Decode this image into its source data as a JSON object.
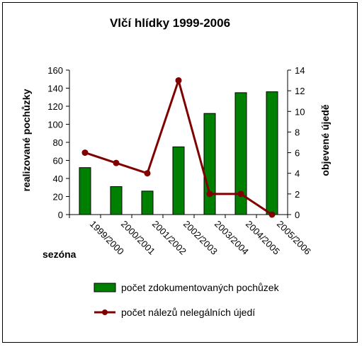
{
  "chart_data": {
    "type": "bar+line",
    "title": "Vlčí hlídky 1999-2006",
    "xlabel": "sezóna",
    "ylabel_left": "realizované pochůzky",
    "ylabel_right": "objevené újedě",
    "categories": [
      "1999/2000",
      "2000/2001",
      "2001/2002",
      "2002/2003",
      "2003/2004",
      "2004/2005",
      "2005/2006"
    ],
    "ylim_left": [
      0,
      160
    ],
    "ylim_right": [
      0,
      14
    ],
    "yticks_left": [
      "0",
      "20",
      "40",
      "60",
      "80",
      "100",
      "120",
      "140",
      "160"
    ],
    "yticks_right": [
      "0",
      "2",
      "4",
      "6",
      "8",
      "10",
      "12",
      "14"
    ],
    "series": [
      {
        "name": "počet zdokumentovaných pochůzek",
        "type": "bar",
        "axis": "left",
        "color": "#008000",
        "values": [
          52,
          31,
          26,
          75,
          112,
          135,
          136
        ]
      },
      {
        "name": "počet nálezů nelegálních újedí",
        "type": "line",
        "axis": "right",
        "color": "#800000",
        "values": [
          6,
          5,
          4,
          13,
          2,
          2,
          0
        ]
      }
    ],
    "legend": {
      "placement": "bottom"
    }
  }
}
